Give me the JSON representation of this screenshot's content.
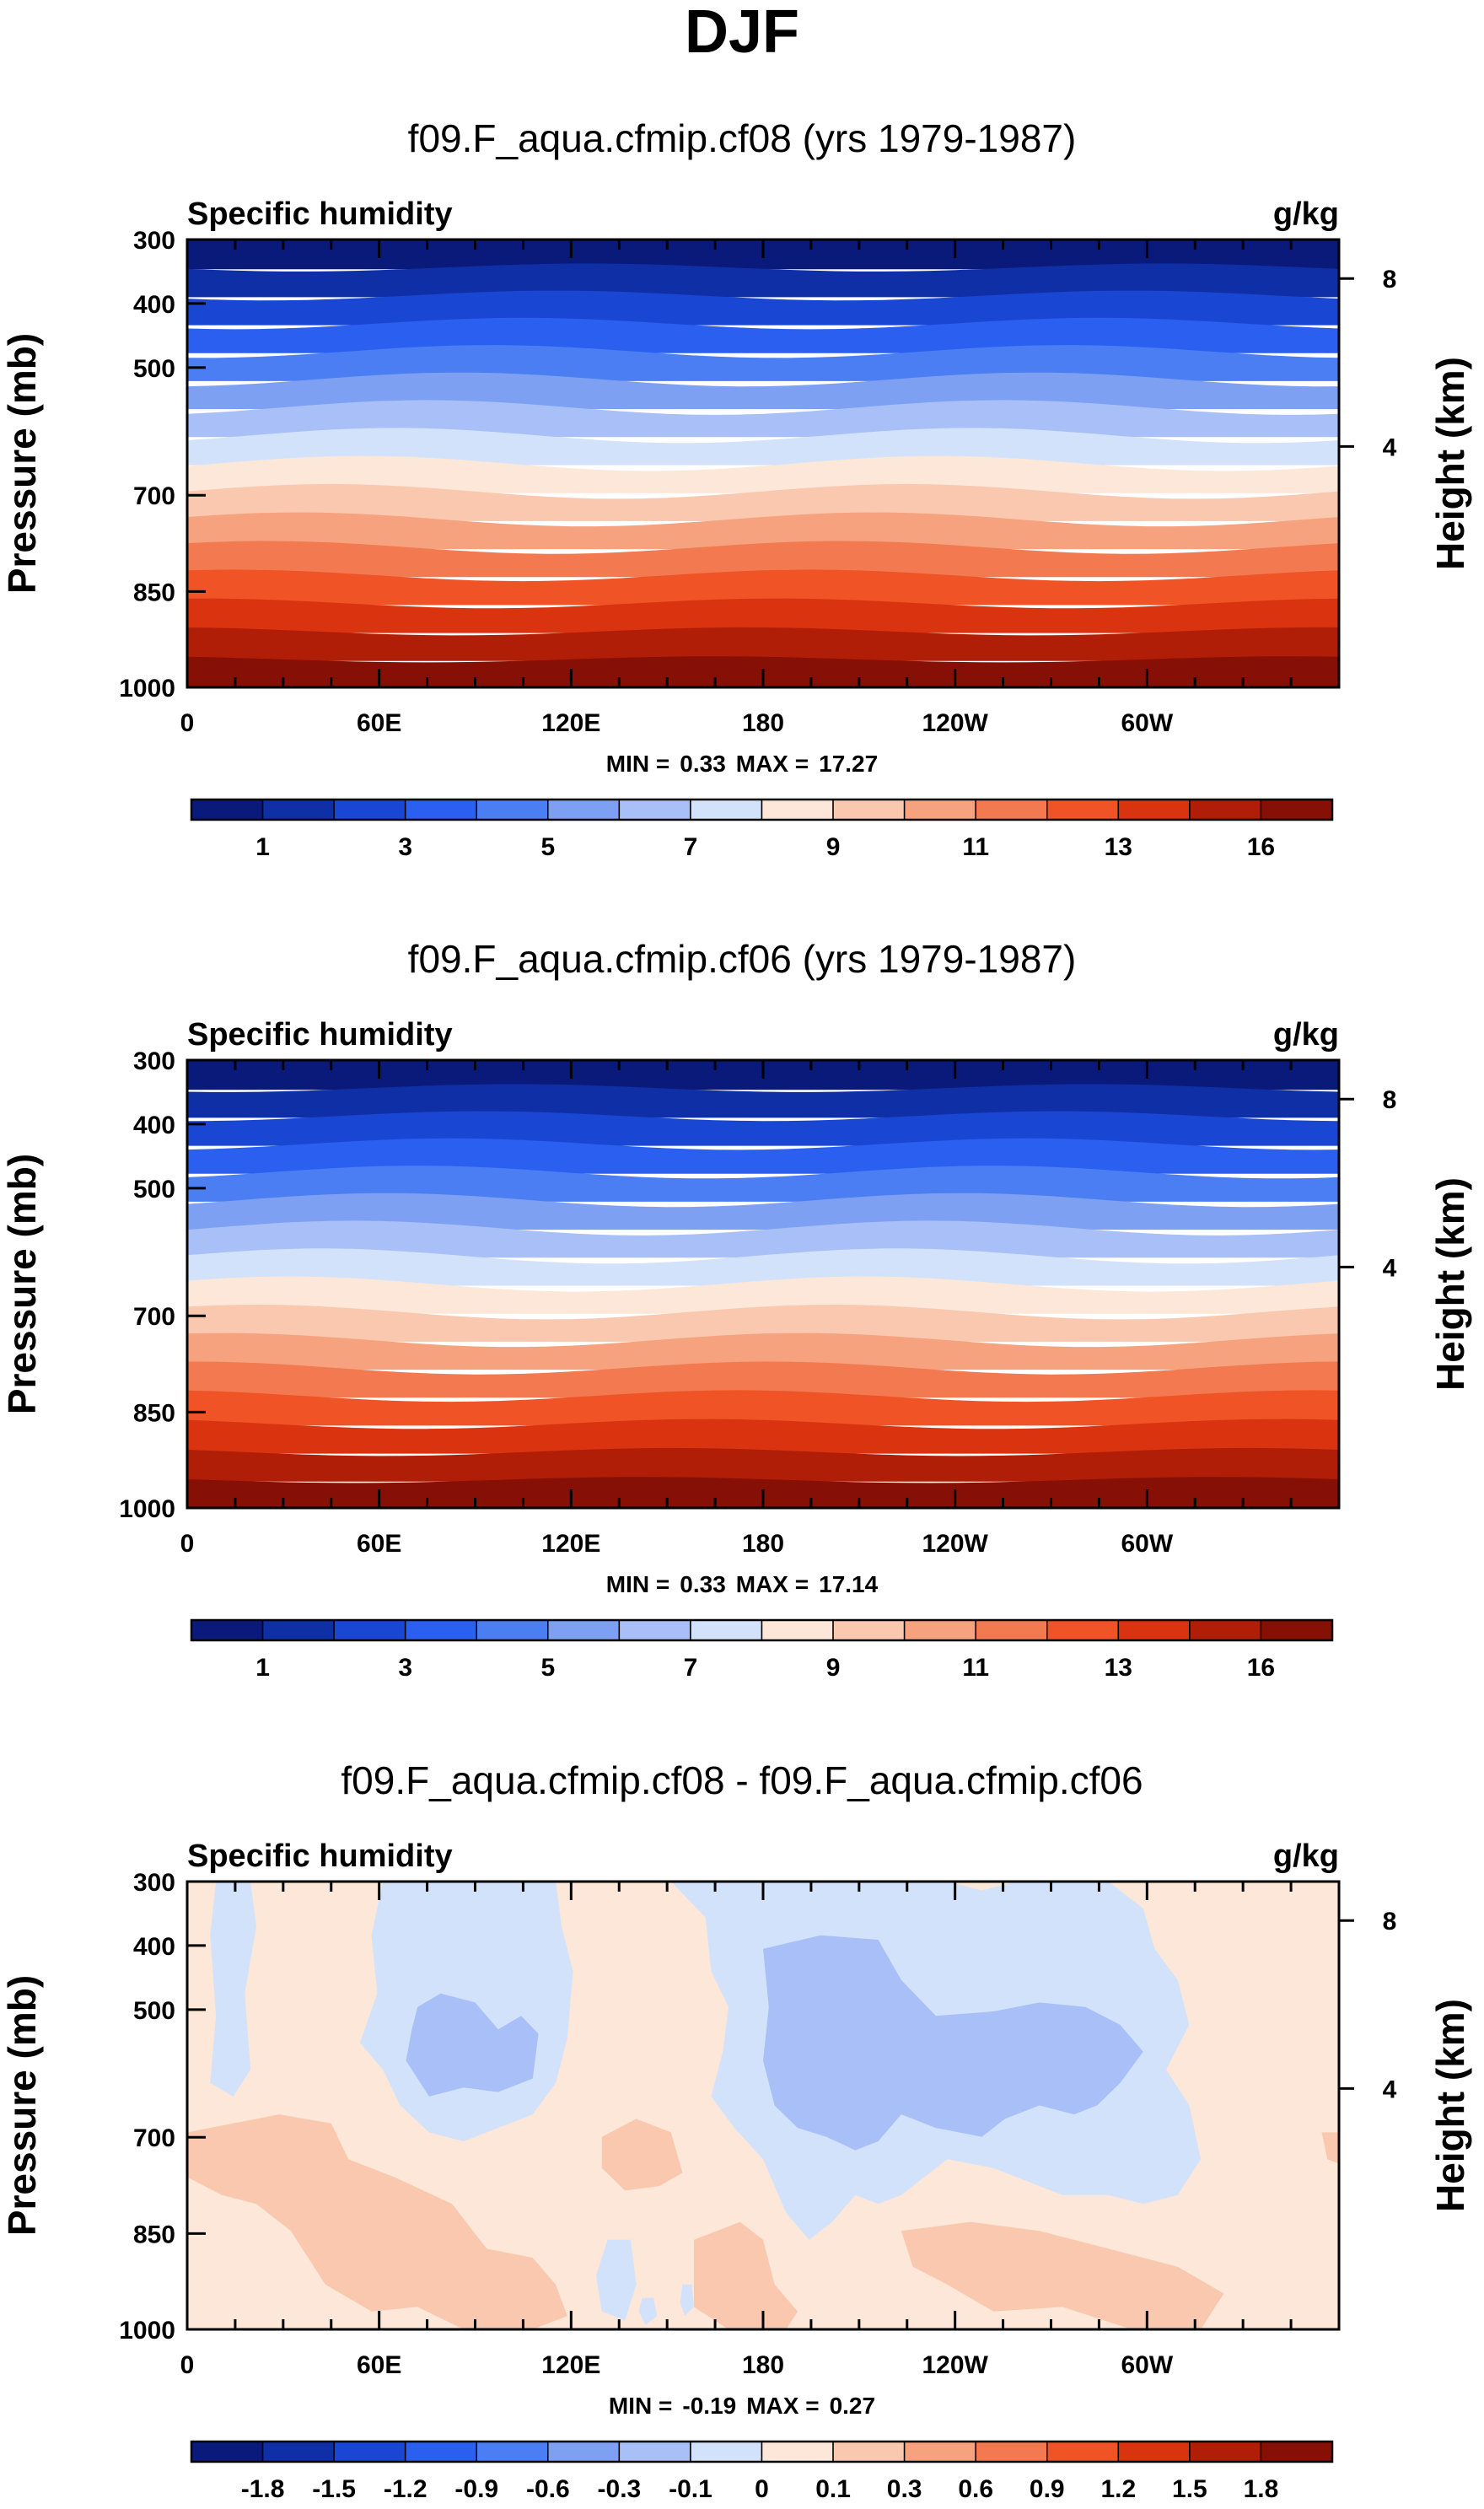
{
  "chart_data": {
    "title": "DJF",
    "colors": {
      "seq": [
        "#0a1a7a",
        "#0f2fa6",
        "#1a46d4",
        "#2a5ff0",
        "#4a7ef2",
        "#7ea0f3",
        "#a8c0f7",
        "#d2e2fb",
        "#fde7d8",
        "#f9c8af",
        "#f6a27f",
        "#f37a50",
        "#ef5326",
        "#d9330f",
        "#b01e08",
        "#861006"
      ],
      "neutral_axis": "#000000"
    },
    "panels": [
      {
        "type": "heatmap",
        "title": "f09.F_aqua.cfmip.cf08 (yrs 1979-1987)",
        "variable": "Specific humidity",
        "units": "g/kg",
        "ylabel": "Pressure (mb)",
        "ylabel_right": "Height (km)",
        "y_ticks": [
          "300",
          "400",
          "500",
          "700",
          "850",
          "1000"
        ],
        "y_right_ticks": [
          "8",
          "4"
        ],
        "x_ticks": [
          "0",
          "60E",
          "120E",
          "180",
          "120W",
          "60W"
        ],
        "min_label": "MIN =",
        "min_value": "0.33",
        "max_label": "MAX =",
        "max_value": "17.27",
        "levels": [
          "1",
          "3",
          "5",
          "7",
          "9",
          "11",
          "13",
          "16"
        ],
        "field": "layered",
        "wave_phase": 0.0
      },
      {
        "type": "heatmap",
        "title": "f09.F_aqua.cfmip.cf06 (yrs 1979-1987)",
        "variable": "Specific humidity",
        "units": "g/kg",
        "ylabel": "Pressure (mb)",
        "ylabel_right": "Height (km)",
        "y_ticks": [
          "300",
          "400",
          "500",
          "700",
          "850",
          "1000"
        ],
        "y_right_ticks": [
          "8",
          "4"
        ],
        "x_ticks": [
          "0",
          "60E",
          "120E",
          "180",
          "120W",
          "60W"
        ],
        "min_label": "MIN =",
        "min_value": "0.33",
        "max_label": "MAX =",
        "max_value": "17.14",
        "levels": [
          "1",
          "3",
          "5",
          "7",
          "9",
          "11",
          "13",
          "16"
        ],
        "field": "layered",
        "wave_phase": 0.8
      },
      {
        "type": "heatmap",
        "title": "f09.F_aqua.cfmip.cf08 - f09.F_aqua.cfmip.cf06",
        "variable": "Specific humidity",
        "units": "g/kg",
        "ylabel": "Pressure (mb)",
        "ylabel_right": "Height (km)",
        "y_ticks": [
          "300",
          "400",
          "500",
          "700",
          "850",
          "1000"
        ],
        "y_right_ticks": [
          "8",
          "4"
        ],
        "x_ticks": [
          "0",
          "60E",
          "120E",
          "180",
          "120W",
          "60W"
        ],
        "min_label": "MIN =",
        "min_value": "-0.19",
        "max_label": "MAX =",
        "max_value": "0.27",
        "levels": [
          "-1.8",
          "-1.5",
          "-1.2",
          "-0.9",
          "-0.6",
          "-0.3",
          "-0.1",
          "0",
          "0.1",
          "0.3",
          "0.6",
          "0.9",
          "1.2",
          "1.5",
          "1.8"
        ],
        "field": "difference",
        "diff_colors": {
          "background": "#fde7d8",
          "light_blue": "#d2e2fb",
          "mid_blue": "#a8c0f7",
          "salmon": "#f9c8af"
        }
      }
    ]
  }
}
